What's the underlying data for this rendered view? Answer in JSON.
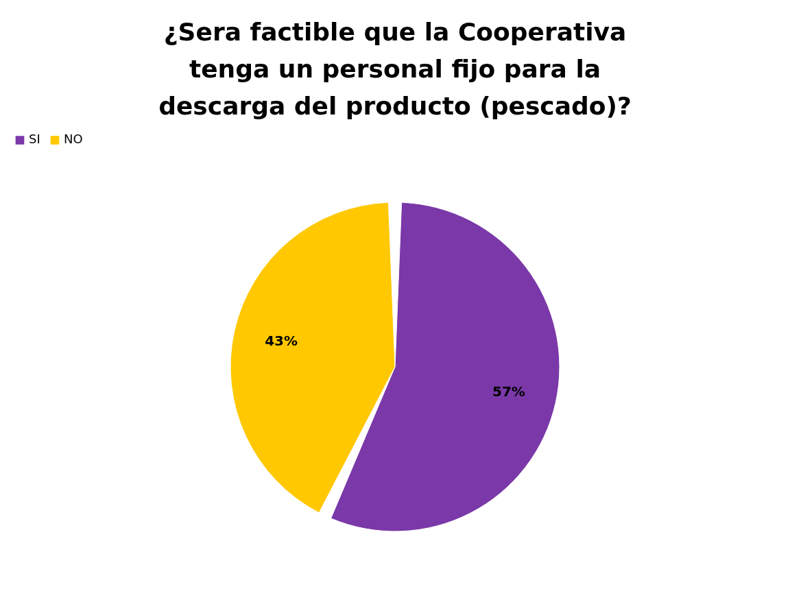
{
  "chart_data": {
    "type": "pie",
    "title": "¿Sera factible que la Cooperativa tenga un personal fijo para la descarga del producto (pescado)?",
    "categories": [
      "SI",
      "NO"
    ],
    "values": [
      57,
      43
    ],
    "colors": [
      "#7a38a8",
      "#ffc800"
    ],
    "value_labels": [
      "57%",
      "43%"
    ],
    "legend": "top"
  }
}
